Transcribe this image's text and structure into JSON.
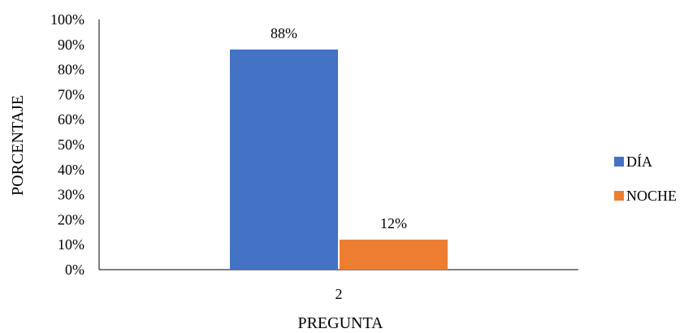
{
  "chart_data": {
    "type": "bar",
    "categories": [
      "2"
    ],
    "series": [
      {
        "name": "DÍA",
        "color": "#4472C4",
        "values": [
          88
        ],
        "labels": [
          "88%"
        ]
      },
      {
        "name": "NOCHE",
        "color": "#ED7D31",
        "values": [
          12
        ],
        "labels": [
          "12%"
        ]
      }
    ],
    "xlabel": "PREGUNTA",
    "ylabel": "PORCENTAJE",
    "ylim": [
      0,
      100
    ],
    "yticks": [
      "0%",
      "10%",
      "20%",
      "30%",
      "40%",
      "50%",
      "60%",
      "70%",
      "80%",
      "90%",
      "100%"
    ],
    "grid": false,
    "legend": "right"
  }
}
